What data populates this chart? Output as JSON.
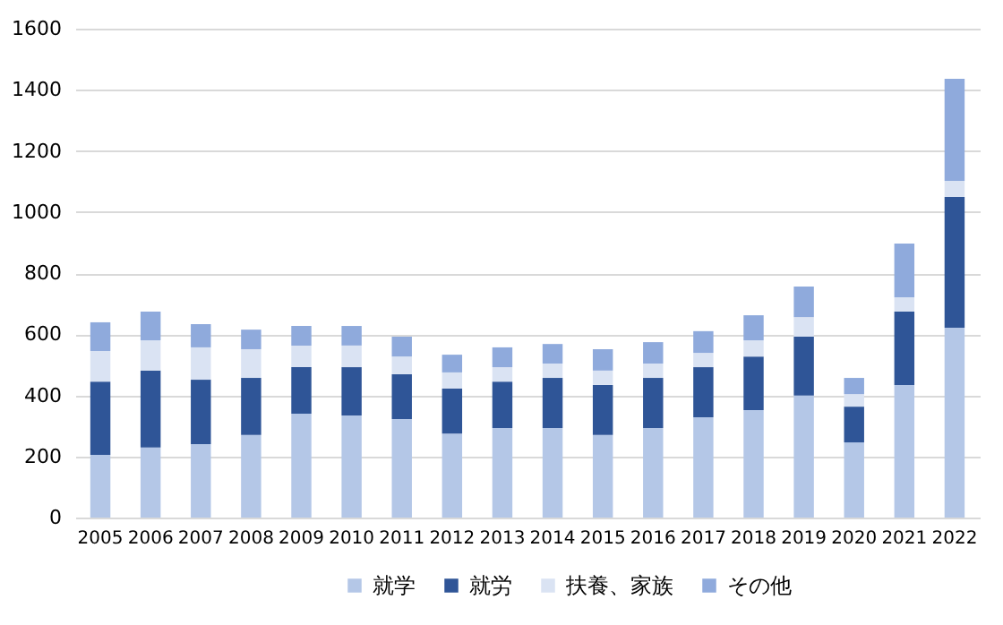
{
  "chart_data": {
    "type": "bar",
    "stacked": true,
    "categories": [
      "2005",
      "2006",
      "2007",
      "2008",
      "2009",
      "2010",
      "2011",
      "2012",
      "2013",
      "2014",
      "2015",
      "2016",
      "2017",
      "2018",
      "2019",
      "2020",
      "2021",
      "2022"
    ],
    "series": [
      {
        "name": "就学",
        "color": "#b4c7e7",
        "values": [
          205,
          229,
          240,
          270,
          340,
          334,
          322,
          275,
          293,
          293,
          270,
          293,
          328,
          352,
          399,
          246,
          434,
          621
        ]
      },
      {
        "name": "就労",
        "color": "#2f5597",
        "values": [
          240,
          252,
          211,
          187,
          152,
          158,
          147,
          147,
          152,
          164,
          164,
          164,
          164,
          175,
          193,
          117,
          240,
          428
        ]
      },
      {
        "name": "扶養、家族",
        "color": "#dae3f3",
        "values": [
          100,
          99,
          106,
          94,
          71,
          71,
          58,
          53,
          47,
          47,
          47,
          47,
          47,
          53,
          64,
          41,
          47,
          53
        ]
      },
      {
        "name": "その他",
        "color": "#8faadc",
        "values": [
          94,
          94,
          76,
          64,
          64,
          64,
          65,
          58,
          65,
          64,
          70,
          70,
          71,
          82,
          100,
          53,
          176,
          334
        ]
      }
    ],
    "ylim": [
      0,
      1600
    ],
    "yticks": [
      0,
      200,
      400,
      600,
      800,
      1000,
      1200,
      1400,
      1600
    ],
    "grid": "y",
    "legend": "bottom"
  }
}
